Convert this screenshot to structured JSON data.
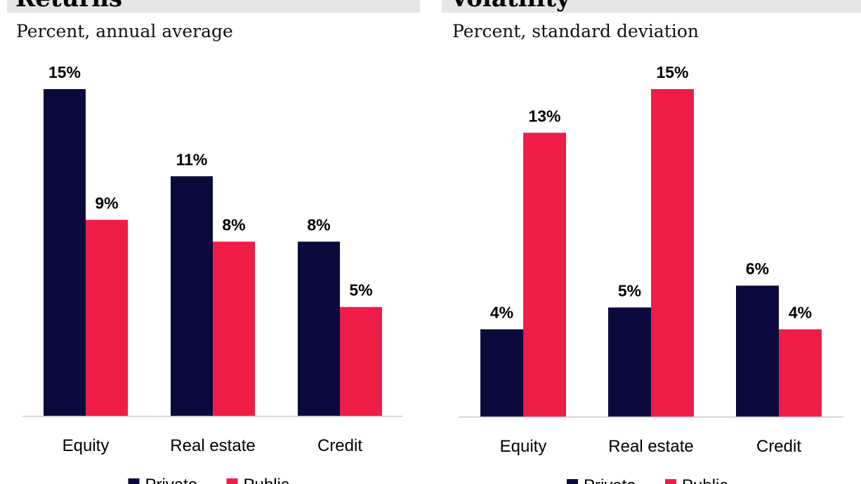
{
  "colors": {
    "private": "#0b0a3d",
    "public": "#ee1c47",
    "axis": "#c8c8c8"
  },
  "chart_data": [
    {
      "type": "bar",
      "title": "Returns",
      "subtitle": "Percent, annual average",
      "categories": [
        "Equity",
        "Real estate",
        "Credit"
      ],
      "series": [
        {
          "name": "Private",
          "values": [
            15,
            11,
            8
          ],
          "labels": [
            "15%",
            "11%",
            "8%"
          ]
        },
        {
          "name": "Public",
          "values": [
            9,
            8,
            5
          ],
          "labels": [
            "9%",
            "8%",
            "5%"
          ]
        }
      ],
      "ylim": [
        0,
        15
      ],
      "grid": false,
      "legend": "bottom"
    },
    {
      "type": "bar",
      "title": "Volatility",
      "subtitle": "Percent, standard deviation",
      "categories": [
        "Equity",
        "Real estate",
        "Credit"
      ],
      "series": [
        {
          "name": "Private",
          "values": [
            4,
            5,
            6
          ],
          "labels": [
            "4%",
            "5%",
            "6%"
          ]
        },
        {
          "name": "Public",
          "values": [
            13,
            15,
            4
          ],
          "labels": [
            "13%",
            "15%",
            "4%"
          ]
        }
      ],
      "ylim": [
        0,
        15
      ],
      "grid": false,
      "legend": "bottom"
    }
  ]
}
